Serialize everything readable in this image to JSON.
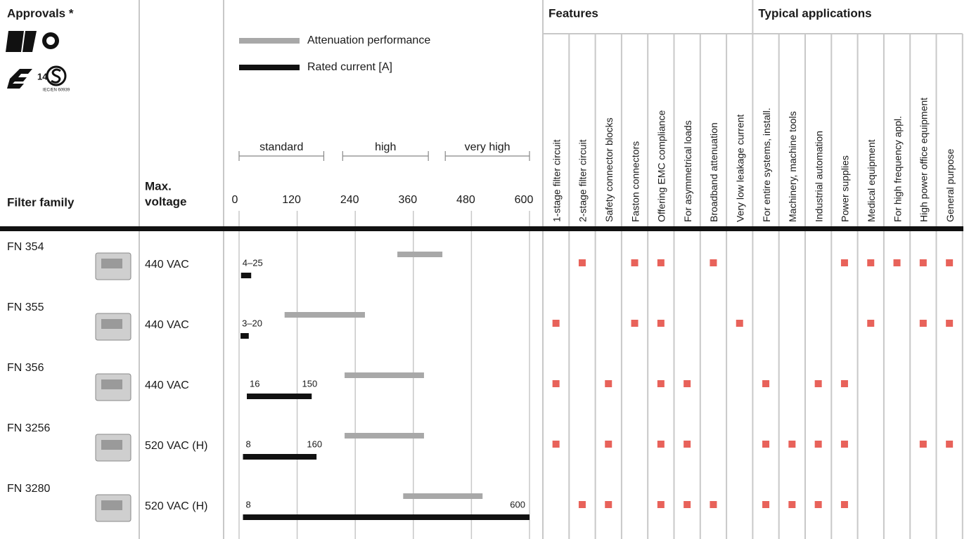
{
  "approvals": {
    "title": "Approvals *",
    "note": "IEC/EN 60939",
    "enec_number": "14"
  },
  "header": {
    "filter_family": "Filter family",
    "max_voltage": [
      "Max.",
      "voltage"
    ]
  },
  "legend": {
    "attenuation": "Attenuation performance",
    "current": "Rated current [A]"
  },
  "scale": {
    "lim": [
      0,
      600
    ],
    "ticks": [
      0,
      120,
      240,
      360,
      480,
      600
    ],
    "ranges": [
      {
        "label": "standard",
        "from": 0,
        "to": 175
      },
      {
        "label": "high",
        "from": 214,
        "to": 391
      },
      {
        "label": "very high",
        "from": 426,
        "to": 600
      }
    ]
  },
  "features": {
    "title": "Features",
    "columns": [
      "1-stage filter circuit",
      "2-stage filter circuit",
      "Safety connector blocks",
      "Faston connectors",
      "Offering EMC compliance",
      "For asymmetrical loads",
      "Broadband attenuation",
      "Very low leakage current"
    ]
  },
  "applications": {
    "title": "Typical applications",
    "columns": [
      "For entire systems, install.",
      "Machinery, machine tools",
      "Industrial automation",
      "Power supplies",
      "Medical equipment",
      "For high frequency appl.",
      "High power office equipment",
      "General purpose"
    ]
  },
  "rows": [
    {
      "family": "FN 354",
      "voltage": "440 VAC",
      "attenuation": [
        327,
        420
      ],
      "current": [
        4,
        25
      ],
      "current_labels": [
        "4–25"
      ],
      "features": [
        false,
        true,
        false,
        true,
        true,
        false,
        true,
        false
      ],
      "applications": [
        false,
        false,
        false,
        true,
        true,
        true,
        true,
        true
      ]
    },
    {
      "family": "FN 355",
      "voltage": "440 VAC",
      "attenuation": [
        94,
        260
      ],
      "current": [
        3,
        20
      ],
      "current_labels": [
        "3–20"
      ],
      "features": [
        true,
        false,
        false,
        true,
        true,
        false,
        false,
        true
      ],
      "applications": [
        false,
        false,
        false,
        false,
        true,
        false,
        true,
        true
      ]
    },
    {
      "family": "FN 356",
      "voltage": "440 VAC",
      "attenuation": [
        218,
        382
      ],
      "current": [
        16,
        150
      ],
      "current_labels": [
        "16",
        "150"
      ],
      "features": [
        true,
        false,
        true,
        false,
        true,
        true,
        false,
        false
      ],
      "applications": [
        true,
        false,
        true,
        true,
        false,
        false,
        false,
        false
      ]
    },
    {
      "family": "FN 3256",
      "voltage": "520 VAC (H)",
      "attenuation": [
        218,
        382
      ],
      "current": [
        8,
        160
      ],
      "current_labels": [
        "8",
        "160"
      ],
      "features": [
        true,
        false,
        true,
        false,
        true,
        true,
        false,
        false
      ],
      "applications": [
        true,
        true,
        true,
        true,
        false,
        false,
        true,
        true
      ]
    },
    {
      "family": "FN 3280",
      "voltage": "520 VAC (H)",
      "attenuation": [
        339,
        503
      ],
      "current": [
        8,
        600
      ],
      "current_labels": [
        "8",
        "600"
      ],
      "features": [
        false,
        true,
        true,
        false,
        true,
        true,
        true,
        false
      ],
      "applications": [
        true,
        true,
        true,
        true,
        false,
        false,
        false,
        false
      ]
    }
  ]
}
